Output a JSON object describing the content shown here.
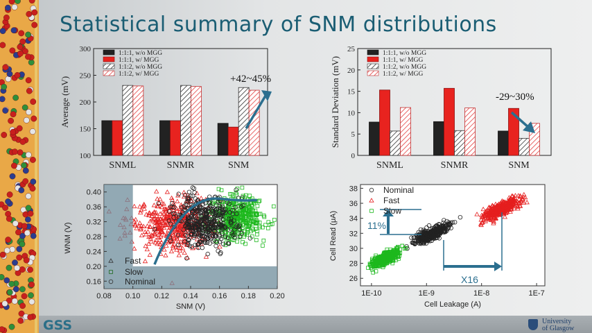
{
  "slide": {
    "title": "Statistical summary of SNM distributions",
    "footer_left": "GSS",
    "footer_right_line1": "University",
    "footer_right_line2": "of Glasgow"
  },
  "colors": {
    "title": "#1a5d73",
    "black_bar": "#222222",
    "red_bar": "#e8231f",
    "hatch_black": "#333333",
    "hatch_red": "#e34040",
    "arrow": "#2b6f8f",
    "scatter_black": "#222222",
    "scatter_red": "#e51e1e",
    "scatter_green": "#1db81d"
  },
  "chart_data": [
    {
      "type": "bar",
      "ylabel": "Average (mV)",
      "categories": [
        "SNML",
        "SNMR",
        "SNM"
      ],
      "ylim": [
        100,
        300
      ],
      "yticks": [
        "100",
        "150",
        "200",
        "250",
        "300"
      ],
      "series": [
        {
          "name": "1:1:1, w/o MGG",
          "values": [
            165,
            165,
            160
          ]
        },
        {
          "name": "1:1:1, w/ MGG",
          "values": [
            165,
            165,
            153
          ]
        },
        {
          "name": "1:1:2, w/o MGG",
          "values": [
            231,
            231,
            227
          ]
        },
        {
          "name": "1:1:2, w/ MGG",
          "values": [
            230,
            229,
            222
          ]
        }
      ],
      "annotation": "+42~45%",
      "legend": "top-left"
    },
    {
      "type": "bar",
      "ylabel": "Standard Deviation (mV)",
      "categories": [
        "SNML",
        "SNMR",
        "SNM"
      ],
      "ylim": [
        0,
        25
      ],
      "yticks": [
        "0",
        "5",
        "10",
        "15",
        "20",
        "25"
      ],
      "series": [
        {
          "name": "1:1:1, w/o MGG",
          "values": [
            7.8,
            7.9,
            5.7
          ]
        },
        {
          "name": "1:1:1, w/ MGG",
          "values": [
            15.3,
            15.7,
            11.0
          ]
        },
        {
          "name": "1:1:2, w/o MGG",
          "values": [
            5.7,
            5.8,
            4.0
          ]
        },
        {
          "name": "1:1:2, w/ MGG",
          "values": [
            11.2,
            11.1,
            7.5
          ]
        }
      ],
      "annotation": "-29~30%",
      "legend": "top-left"
    },
    {
      "type": "scatter",
      "xlabel": "SNM (V)",
      "ylabel": "WNM (V)",
      "xlim": [
        0.08,
        0.2
      ],
      "ylim": [
        0.14,
        0.42
      ],
      "xticks": [
        "0.08",
        "0.10",
        "0.12",
        "0.14",
        "0.16",
        "0.18",
        "0.20"
      ],
      "yticks": [
        "0.16",
        "0.20",
        "0.24",
        "0.28",
        "0.32",
        "0.36",
        "0.40"
      ],
      "series": [
        {
          "name": "Fast",
          "center": [
            0.128,
            0.315
          ],
          "spread": [
            0.014,
            0.05
          ]
        },
        {
          "name": "Slow",
          "center": [
            0.172,
            0.33
          ],
          "spread": [
            0.009,
            0.04
          ]
        },
        {
          "name": "Nominal",
          "center": [
            0.15,
            0.32
          ],
          "spread": [
            0.011,
            0.045
          ]
        }
      ],
      "legend": "bottom-left"
    },
    {
      "type": "scatter",
      "xlabel": "Cell Leakage (A)",
      "ylabel": "Cell Read (μA)",
      "xscale": "log",
      "xlim": [
        1e-10,
        1e-07
      ],
      "ylim": [
        25,
        38.5
      ],
      "xticks": [
        "1E-10",
        "1E-9",
        "1E-8",
        "1E-7"
      ],
      "yticks": [
        "26",
        "28",
        "30",
        "32",
        "34",
        "36",
        "38"
      ],
      "series": [
        {
          "name": "Nominal",
          "center_log": [
            -8.9,
            32.0
          ],
          "spread": [
            0.28,
            1.1
          ]
        },
        {
          "name": "Fast",
          "center_log": [
            -7.65,
            35.2
          ],
          "spread": [
            0.3,
            1.2
          ]
        },
        {
          "name": "Slow",
          "center_log": [
            -9.75,
            28.6
          ],
          "spread": [
            0.25,
            1.0
          ]
        }
      ],
      "annotations": [
        "11%",
        "X16"
      ],
      "legend": "top-left"
    }
  ]
}
